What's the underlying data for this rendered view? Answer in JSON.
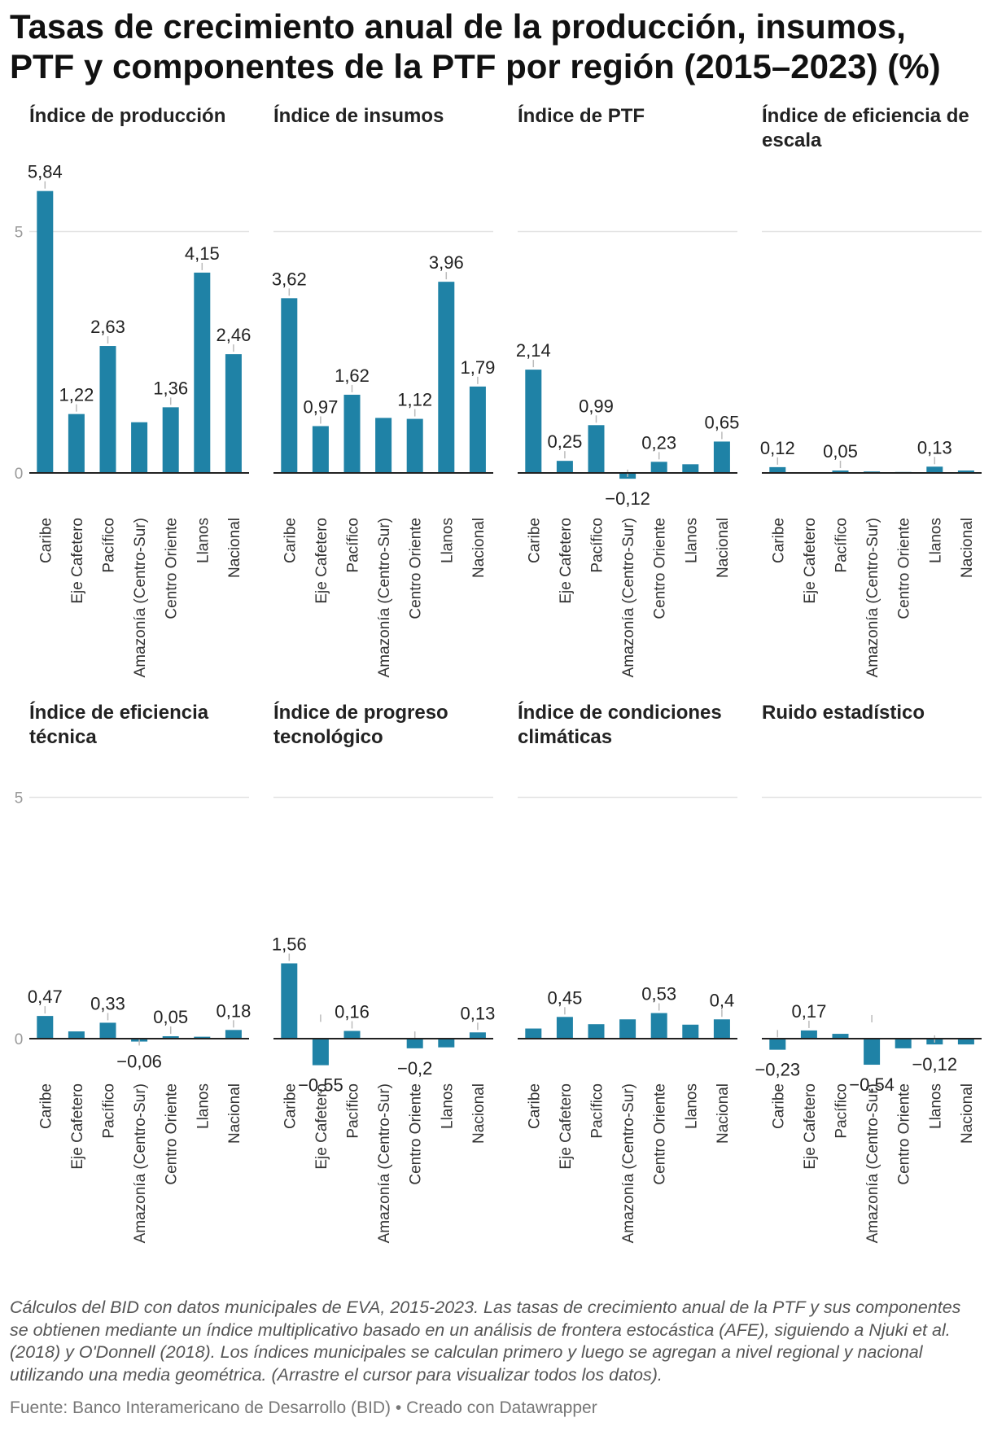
{
  "title": "Tasas de crecimiento anual de la producción, insumos, PTF y componentes de la PTF por región (2015–2023) (%)",
  "footnote": "Cálculos del BID con datos municipales de EVA, 2015-2023. Las tasas de crecimiento anual de la PTF y sus componentes se obtienen mediante un índice multiplicativo basado en un análisis de frontera estocástica (AFE), siguiendo a Njuki et al. (2018) y O'Donnell (2018). Los índices municipales se calculan primero y luego se agregan a nivel regional y nacional utilizando una media geométrica. (Arrastre el cursor para visualizar todos los datos).",
  "source": "Fuente: Banco Interamericano de Desarrollo (BID) • Creado con Datawrapper",
  "colors": {
    "bar": "#1f82a6",
    "grid": "#e2e2e2",
    "baseline": "#222222",
    "tick_text": "#9a9a9a"
  },
  "chart_data": [
    {
      "type": "bar",
      "title": "Índice de producción",
      "categories": [
        "Caribe",
        "Eje Cafetero",
        "Pacífico",
        "Amazonía (Centro-Sur)",
        "Centro Oriente",
        "Llanos",
        "Nacional"
      ],
      "values": [
        5.84,
        1.22,
        2.63,
        1.05,
        1.36,
        4.15,
        2.46
      ],
      "labels": [
        "5,84",
        "1,22",
        "2,63",
        "",
        "1,36",
        "4,15",
        "2,46"
      ],
      "ylim": [
        0,
        5.84
      ],
      "yticks": [
        {
          "value": 0,
          "label": "0"
        },
        {
          "value": 5,
          "label": "5"
        }
      ],
      "grid": true
    },
    {
      "type": "bar",
      "title": "Índice de insumos",
      "categories": [
        "Caribe",
        "Eje Cafetero",
        "Pacífico",
        "Amazonía (Centro-Sur)",
        "Centro Oriente",
        "Llanos",
        "Nacional"
      ],
      "values": [
        3.62,
        0.97,
        1.62,
        1.14,
        1.12,
        3.96,
        1.79
      ],
      "labels": [
        "3,62",
        "0,97",
        "1,62",
        "",
        "1,12",
        "3,96",
        "1,79"
      ],
      "ylim": [
        0,
        5.84
      ],
      "grid": true
    },
    {
      "type": "bar",
      "title": "Índice de PTF",
      "categories": [
        "Caribe",
        "Eje Cafetero",
        "Pacífico",
        "Amazonía (Centro-Sur)",
        "Centro Oriente",
        "Llanos",
        "Nacional"
      ],
      "values": [
        2.14,
        0.25,
        0.99,
        -0.12,
        0.23,
        0.18,
        0.65
      ],
      "labels": [
        "2,14",
        "0,25",
        "0,99",
        "−0,12",
        "0,23",
        "",
        "0,65"
      ],
      "ylim": [
        0,
        5.84
      ],
      "grid": true
    },
    {
      "type": "bar",
      "title": "Índice de eficiencia de escala",
      "categories": [
        "Caribe",
        "Eje Cafetero",
        "Pacífico",
        "Amazonía (Centro-Sur)",
        "Centro Oriente",
        "Llanos",
        "Nacional"
      ],
      "values": [
        0.12,
        0.0,
        0.05,
        0.03,
        0.02,
        0.13,
        0.05
      ],
      "labels": [
        "0,12",
        "",
        "0,05",
        "",
        "",
        "0,13",
        ""
      ],
      "ylim": [
        0,
        5.84
      ],
      "grid": true
    },
    {
      "type": "bar",
      "title": "Índice de eficiencia técnica",
      "categories": [
        "Caribe",
        "Eje Cafetero",
        "Pacífico",
        "Amazonía (Centro-Sur)",
        "Centro Oriente",
        "Llanos",
        "Nacional"
      ],
      "values": [
        0.47,
        0.15,
        0.33,
        -0.06,
        0.05,
        0.04,
        0.18
      ],
      "labels": [
        "0,47",
        "",
        "0,33",
        "−0,06",
        "0,05",
        "",
        "0,18"
      ],
      "ylim": [
        -0.6,
        5
      ],
      "yticks": [
        {
          "value": 0,
          "label": "0"
        },
        {
          "value": 5,
          "label": "5"
        }
      ],
      "grid": true
    },
    {
      "type": "bar",
      "title": "Índice de progreso tecnológico",
      "categories": [
        "Caribe",
        "Eje Cafetero",
        "Pacífico",
        "Amazonía (Centro-Sur)",
        "Centro Oriente",
        "Llanos",
        "Nacional"
      ],
      "values": [
        1.56,
        -0.55,
        0.16,
        0.0,
        -0.2,
        -0.18,
        0.13
      ],
      "labels": [
        "1,56",
        "−0,55",
        "0,16",
        "",
        "−0,2",
        "",
        "0,13"
      ],
      "ylim": [
        -0.6,
        5
      ],
      "grid": true
    },
    {
      "type": "bar",
      "title": "Índice de condiciones climáticas",
      "categories": [
        "Caribe",
        "Eje Cafetero",
        "Pacífico",
        "Amazonía (Centro-Sur)",
        "Centro Oriente",
        "Llanos",
        "Nacional"
      ],
      "values": [
        0.21,
        0.45,
        0.3,
        0.4,
        0.53,
        0.29,
        0.4
      ],
      "labels": [
        "",
        "0,45",
        "",
        "",
        "0,53",
        "",
        "0,4"
      ],
      "ylim": [
        -0.6,
        5
      ],
      "grid": true
    },
    {
      "type": "bar",
      "title": "Ruido estadístico",
      "categories": [
        "Caribe",
        "Eje Cafetero",
        "Pacífico",
        "Amazonía (Centro-Sur)",
        "Centro Oriente",
        "Llanos",
        "Nacional"
      ],
      "values": [
        -0.23,
        0.17,
        0.1,
        -0.54,
        -0.2,
        -0.12,
        -0.12
      ],
      "labels": [
        "−0,23",
        "0,17",
        "",
        "−0,54",
        "",
        "−0,12",
        ""
      ],
      "ylim": [
        -0.6,
        5
      ],
      "grid": true
    }
  ]
}
